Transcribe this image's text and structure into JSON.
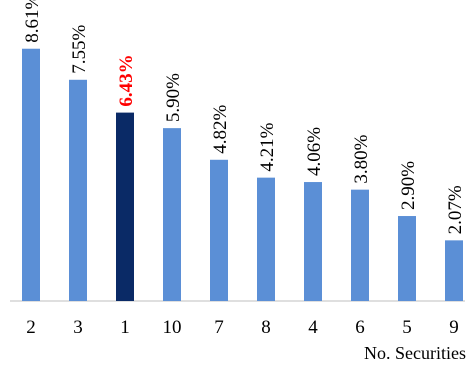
{
  "chart_data": {
    "type": "bar",
    "categories": [
      "2",
      "3",
      "1",
      "10",
      "7",
      "8",
      "4",
      "6",
      "5",
      "9"
    ],
    "values": [
      8.61,
      7.55,
      6.43,
      5.9,
      4.82,
      4.21,
      4.06,
      3.8,
      2.9,
      2.07
    ],
    "data_labels": [
      "8.61%",
      "7.55%",
      "6.43%",
      "5.90%",
      "4.82%",
      "4.21%",
      "4.06%",
      "3.80%",
      "2.90%",
      "2.07%"
    ],
    "highlight_index": 2,
    "xlabel": "No. Securities",
    "ylabel": "",
    "ylim": [
      0,
      9
    ],
    "grid": false,
    "colors": {
      "bar": "#5b8fd6",
      "highlight_bar": "#0a2a66",
      "highlight_label": "#ff0000",
      "axis": "#bfbfbf"
    }
  }
}
